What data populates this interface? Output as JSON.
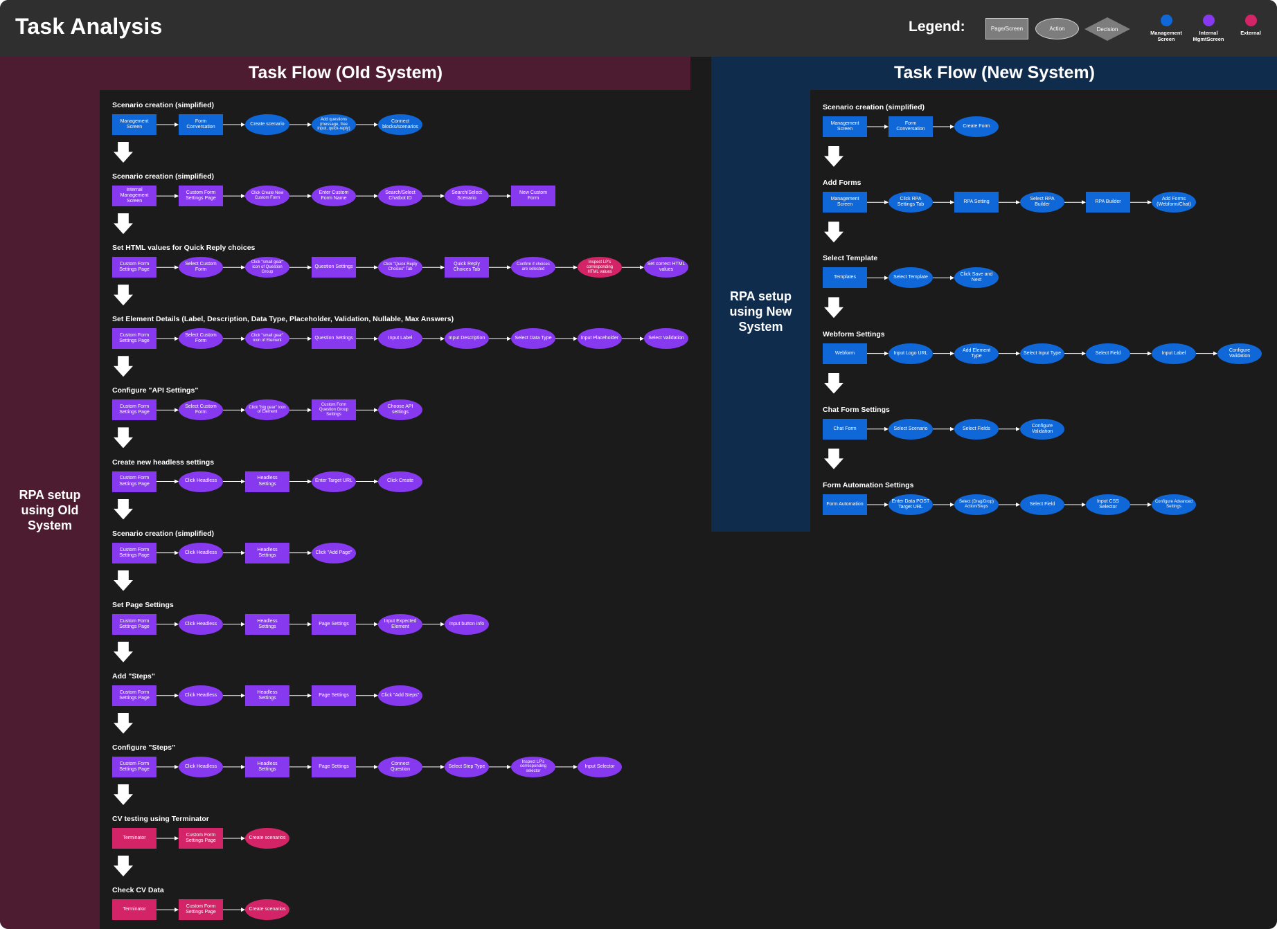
{
  "header": {
    "title": "Task Analysis",
    "legend": {
      "title": "Legend:",
      "shapes": [
        "Page/Screen",
        "Action",
        "Decision"
      ],
      "colors": [
        {
          "label": "Management Screen",
          "color": "#0f67d8"
        },
        {
          "label": "Internal MgmtScreen",
          "color": "#8739ef"
        },
        {
          "label": "External",
          "color": "#d32467"
        }
      ]
    }
  },
  "old_system": {
    "title": "Task Flow (Old System)",
    "side_label": "RPA setup using Old System",
    "sections": [
      {
        "title": "Scenario creation (simplified)",
        "nodes": [
          {
            "label": "Management Screen",
            "shape": "rect",
            "color": "blue"
          },
          {
            "label": "Form Conversation",
            "shape": "rect",
            "color": "blue"
          },
          {
            "label": "Create scenario",
            "shape": "ellipse",
            "color": "blue"
          },
          {
            "label": "Add questions (message, free input, quick-reply)",
            "shape": "ellipse",
            "color": "blue"
          },
          {
            "label": "Connect blocks/scenarios",
            "shape": "ellipse",
            "color": "blue"
          }
        ]
      },
      {
        "title": "Scenario creation (simplified)",
        "nodes": [
          {
            "label": "Internal Management Screen",
            "shape": "rect",
            "color": "purple"
          },
          {
            "label": "Custom Form Settings Page",
            "shape": "rect",
            "color": "purple"
          },
          {
            "label": "Click Create New Custom Form",
            "shape": "ellipse",
            "color": "purple"
          },
          {
            "label": "Enter Custom Form Name",
            "shape": "ellipse",
            "color": "purple"
          },
          {
            "label": "Search/Select Chatbot ID",
            "shape": "ellipse",
            "color": "purple"
          },
          {
            "label": "Search/Select Scenario",
            "shape": "ellipse",
            "color": "purple"
          },
          {
            "label": "New Custom Form",
            "shape": "rect",
            "color": "purple"
          }
        ]
      },
      {
        "title": "Set HTML values for Quick Reply choices",
        "nodes": [
          {
            "label": "Custom Form Settings Page",
            "shape": "rect",
            "color": "purple"
          },
          {
            "label": "Select Custom Form",
            "shape": "ellipse",
            "color": "purple"
          },
          {
            "label": "Click \"small gear\" icon of Question Group",
            "shape": "ellipse",
            "color": "purple"
          },
          {
            "label": "Question Settings",
            "shape": "rect",
            "color": "purple"
          },
          {
            "label": "Click \"Quick Reply Choices\" Tab",
            "shape": "ellipse",
            "color": "purple"
          },
          {
            "label": "Quick Reply Choices Tab",
            "shape": "rect",
            "color": "purple"
          },
          {
            "label": "Confirm if choices are selected",
            "shape": "ellipse",
            "color": "purple"
          },
          {
            "label": "Inspect LP's corresponding HTML values",
            "shape": "ellipse",
            "color": "magenta"
          },
          {
            "label": "Set correct HTML values",
            "shape": "ellipse",
            "color": "purple"
          }
        ]
      },
      {
        "title": "Set Element Details (Label, Description, Data Type, Placeholder, Validation, Nullable, Max Answers)",
        "nodes": [
          {
            "label": "Custom Form Settings Page",
            "shape": "rect",
            "color": "purple"
          },
          {
            "label": "Select Custom Form",
            "shape": "ellipse",
            "color": "purple"
          },
          {
            "label": "Click \"small gear\" icon of Element",
            "shape": "ellipse",
            "color": "purple"
          },
          {
            "label": "Question Settings",
            "shape": "rect",
            "color": "purple"
          },
          {
            "label": "Input Label",
            "shape": "ellipse",
            "color": "purple"
          },
          {
            "label": "Input Description",
            "shape": "ellipse",
            "color": "purple"
          },
          {
            "label": "Select Data Type",
            "shape": "ellipse",
            "color": "purple"
          },
          {
            "label": "Input Placeholder",
            "shape": "ellipse",
            "color": "purple"
          },
          {
            "label": "Select Validation",
            "shape": "ellipse",
            "color": "purple"
          }
        ]
      },
      {
        "title": "Configure \"API Settings\"",
        "nodes": [
          {
            "label": "Custom Form Settings Page",
            "shape": "rect",
            "color": "purple"
          },
          {
            "label": "Select Custom Form",
            "shape": "ellipse",
            "color": "purple"
          },
          {
            "label": "Click \"big gear\" icon of Element",
            "shape": "ellipse",
            "color": "purple"
          },
          {
            "label": "Custom Form Question Group Settings",
            "shape": "rect",
            "color": "purple"
          },
          {
            "label": "Choose API settings",
            "shape": "ellipse",
            "color": "purple"
          }
        ]
      },
      {
        "title": "Create new headless settings",
        "nodes": [
          {
            "label": "Custom Form Settings Page",
            "shape": "rect",
            "color": "purple"
          },
          {
            "label": "Click Headless",
            "shape": "ellipse",
            "color": "purple"
          },
          {
            "label": "Headless Settings",
            "shape": "rect",
            "color": "purple"
          },
          {
            "label": "Enter Target URL",
            "shape": "ellipse",
            "color": "purple"
          },
          {
            "label": "Click Create",
            "shape": "ellipse",
            "color": "purple"
          }
        ]
      },
      {
        "title": "Scenario creation (simplified)",
        "nodes": [
          {
            "label": "Custom Form Settings Page",
            "shape": "rect",
            "color": "purple"
          },
          {
            "label": "Click Headless",
            "shape": "ellipse",
            "color": "purple"
          },
          {
            "label": "Headless Settings",
            "shape": "rect",
            "color": "purple"
          },
          {
            "label": "Click \"Add Page\"",
            "shape": "ellipse",
            "color": "purple"
          }
        ]
      },
      {
        "title": "Set Page Settings",
        "nodes": [
          {
            "label": "Custom Form Settings Page",
            "shape": "rect",
            "color": "purple"
          },
          {
            "label": "Click Headless",
            "shape": "ellipse",
            "color": "purple"
          },
          {
            "label": "Headless Settings",
            "shape": "rect",
            "color": "purple"
          },
          {
            "label": "Page Settings",
            "shape": "rect",
            "color": "purple"
          },
          {
            "label": "Input Expected Element",
            "shape": "ellipse",
            "color": "purple"
          },
          {
            "label": "Input button info",
            "shape": "ellipse",
            "color": "purple"
          }
        ]
      },
      {
        "title": "Add \"Steps\"",
        "nodes": [
          {
            "label": "Custom Form Settings Page",
            "shape": "rect",
            "color": "purple"
          },
          {
            "label": "Click Headless",
            "shape": "ellipse",
            "color": "purple"
          },
          {
            "label": "Headless Settings",
            "shape": "rect",
            "color": "purple"
          },
          {
            "label": "Page Settings",
            "shape": "rect",
            "color": "purple"
          },
          {
            "label": "Click \"Add Steps\"",
            "shape": "ellipse",
            "color": "purple"
          }
        ]
      },
      {
        "title": "Configure \"Steps\"",
        "nodes": [
          {
            "label": "Custom Form Settings Page",
            "shape": "rect",
            "color": "purple"
          },
          {
            "label": "Click Headless",
            "shape": "ellipse",
            "color": "purple"
          },
          {
            "label": "Headless Settings",
            "shape": "rect",
            "color": "purple"
          },
          {
            "label": "Page Settings",
            "shape": "rect",
            "color": "purple"
          },
          {
            "label": "Connect Question",
            "shape": "ellipse",
            "color": "purple"
          },
          {
            "label": "Select Step Type",
            "shape": "ellipse",
            "color": "purple"
          },
          {
            "label": "Inspect LP's corresponding selector",
            "shape": "ellipse",
            "color": "purple"
          },
          {
            "label": "Input Selector",
            "shape": "ellipse",
            "color": "purple"
          }
        ]
      },
      {
        "title": "CV testing using Terminator",
        "nodes": [
          {
            "label": "Terminator",
            "shape": "rect",
            "color": "magenta"
          },
          {
            "label": "Custom Form Settings Page",
            "shape": "rect",
            "color": "magenta"
          },
          {
            "label": "Create scenarios",
            "shape": "ellipse",
            "color": "magenta"
          }
        ]
      },
      {
        "title": "Check CV Data",
        "nodes": [
          {
            "label": "Terminator",
            "shape": "rect",
            "color": "magenta"
          },
          {
            "label": "Custom Form Settings Page",
            "shape": "rect",
            "color": "magenta"
          },
          {
            "label": "Create scenarios",
            "shape": "ellipse",
            "color": "magenta"
          }
        ]
      }
    ]
  },
  "new_system": {
    "title": "Task Flow (New System)",
    "side_label": "RPA setup using New System",
    "sections": [
      {
        "title": "Scenario creation (simplified)",
        "nodes": [
          {
            "label": "Management Screen",
            "shape": "rect",
            "color": "blue"
          },
          {
            "label": "Form Conversation",
            "shape": "rect",
            "color": "blue"
          },
          {
            "label": "Create Form",
            "shape": "ellipse",
            "color": "blue"
          }
        ]
      },
      {
        "title": "Add Forms",
        "nodes": [
          {
            "label": "Management Screen",
            "shape": "rect",
            "color": "blue"
          },
          {
            "label": "Click RPA Settings Tab",
            "shape": "ellipse",
            "color": "blue"
          },
          {
            "label": "RPA Setting",
            "shape": "rect",
            "color": "blue"
          },
          {
            "label": "Select RPA Builder",
            "shape": "ellipse",
            "color": "blue"
          },
          {
            "label": "RPA Builder",
            "shape": "rect",
            "color": "blue"
          },
          {
            "label": "Add Forms (Webform/Chat)",
            "shape": "ellipse",
            "color": "blue"
          }
        ]
      },
      {
        "title": "Select Template",
        "nodes": [
          {
            "label": "Templates",
            "shape": "rect",
            "color": "blue"
          },
          {
            "label": "Select Template",
            "shape": "ellipse",
            "color": "blue"
          },
          {
            "label": "Click Save and Next",
            "shape": "ellipse",
            "color": "blue"
          }
        ]
      },
      {
        "title": "Webform Settings",
        "nodes": [
          {
            "label": "Webform",
            "shape": "rect",
            "color": "blue"
          },
          {
            "label": "Input Logo URL",
            "shape": "ellipse",
            "color": "blue"
          },
          {
            "label": "Add Element Type",
            "shape": "ellipse",
            "color": "blue"
          },
          {
            "label": "Select Input Type",
            "shape": "ellipse",
            "color": "blue"
          },
          {
            "label": "Select Field",
            "shape": "ellipse",
            "color": "blue"
          },
          {
            "label": "Input Label",
            "shape": "ellipse",
            "color": "blue"
          },
          {
            "label": "Configure Validation",
            "shape": "ellipse",
            "color": "blue"
          }
        ]
      },
      {
        "title": "Chat Form Settings",
        "nodes": [
          {
            "label": "Chat Form",
            "shape": "rect",
            "color": "blue"
          },
          {
            "label": "Select Scenario",
            "shape": "ellipse",
            "color": "blue"
          },
          {
            "label": "Select Fields",
            "shape": "ellipse",
            "color": "blue"
          },
          {
            "label": "Configure Validation",
            "shape": "ellipse",
            "color": "blue"
          }
        ]
      },
      {
        "title": "Form Automation Settings",
        "nodes": [
          {
            "label": "Form Automation",
            "shape": "rect",
            "color": "blue"
          },
          {
            "label": "Enter Data POST Target URL",
            "shape": "ellipse",
            "color": "blue"
          },
          {
            "label": "Select (Drag/Drop) Action/Steps",
            "shape": "ellipse",
            "color": "blue"
          },
          {
            "label": "Select Field",
            "shape": "ellipse",
            "color": "blue"
          },
          {
            "label": "Input CSS Selector",
            "shape": "ellipse",
            "color": "blue"
          },
          {
            "label": "Configure Advanced Settings",
            "shape": "ellipse",
            "color": "blue"
          }
        ]
      }
    ]
  },
  "colors": {
    "blue": "#0f67d8",
    "purple": "#8739ef",
    "magenta": "#d32467",
    "old_band": "#4e1c31",
    "new_band": "#0f2c4d"
  }
}
